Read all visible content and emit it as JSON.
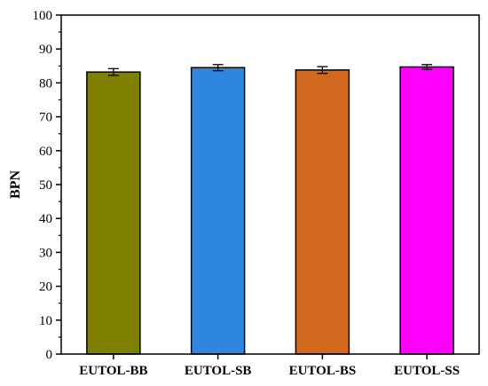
{
  "chart_data": {
    "type": "bar",
    "title": "",
    "xlabel": "",
    "ylabel": "BPN",
    "ylim": [
      0,
      100
    ],
    "yticks": [
      0,
      10,
      20,
      30,
      40,
      50,
      60,
      70,
      80,
      90,
      100
    ],
    "grid": false,
    "categories": [
      "EUTOL-BB",
      "EUTOL-SB",
      "EUTOL-BS",
      "EUTOL-SS"
    ],
    "values": [
      83.2,
      84.5,
      83.8,
      84.7
    ],
    "errors": [
      1.0,
      0.9,
      1.0,
      0.7
    ],
    "colors": [
      "#808000",
      "#2e86de",
      "#d2691e",
      "#ff00ff"
    ]
  }
}
